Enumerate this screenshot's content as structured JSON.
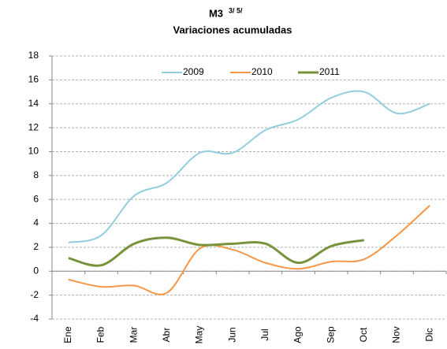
{
  "chart_data": {
    "type": "line",
    "title": "M3",
    "title_note": "3/ 5/",
    "subtitle": "Variaciones acumuladas",
    "categories": [
      "Ene",
      "Feb",
      "Mar",
      "Abr",
      "May",
      "Jun",
      "Jul",
      "Ago",
      "Sep",
      "Oct",
      "Nov",
      "Dic"
    ],
    "series": [
      {
        "name": "2009",
        "color": "#92cddc",
        "values": [
          2.4,
          3.0,
          6.3,
          7.4,
          9.9,
          9.9,
          11.8,
          12.7,
          14.5,
          15.0,
          13.2,
          14.0
        ]
      },
      {
        "name": "2010",
        "color": "#f79646",
        "values": [
          -0.7,
          -1.3,
          -1.2,
          -1.8,
          1.9,
          1.8,
          0.7,
          0.2,
          0.8,
          1.0,
          3.0,
          5.5
        ]
      },
      {
        "name": "2011",
        "color": "#77933c",
        "values": [
          1.1,
          0.5,
          2.3,
          2.8,
          2.2,
          2.3,
          2.3,
          0.7,
          2.1,
          2.6,
          null,
          null
        ]
      }
    ],
    "ylim": [
      -4,
      18
    ],
    "yticks": [
      -4,
      -2,
      0,
      2,
      4,
      6,
      8,
      10,
      12,
      14,
      16,
      18
    ],
    "grid": true,
    "legend": "top"
  }
}
